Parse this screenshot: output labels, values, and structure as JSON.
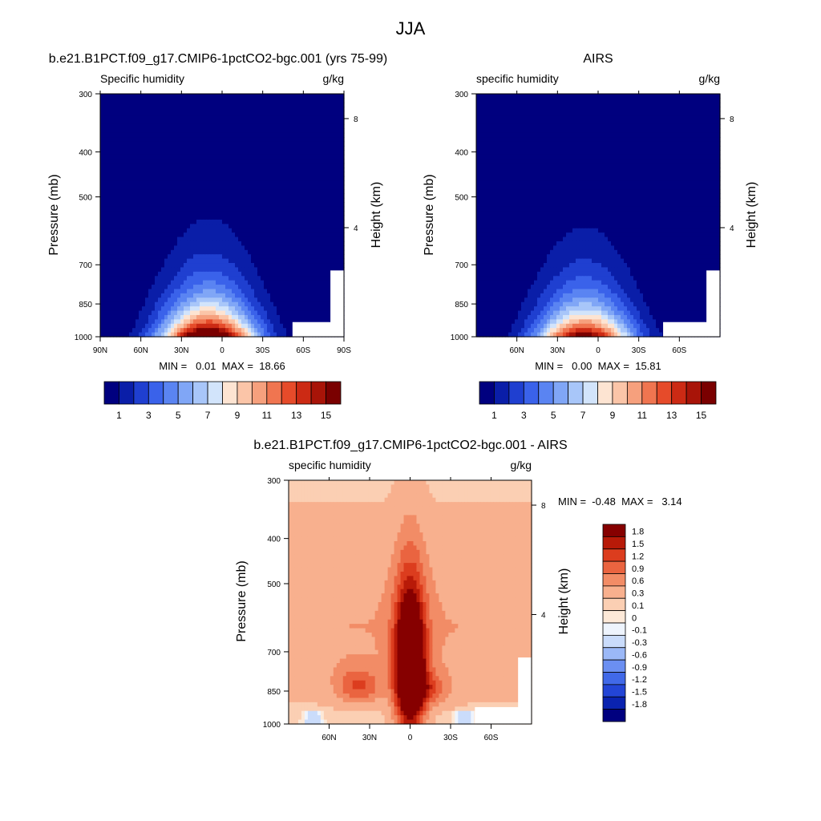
{
  "figure_title": "JJA",
  "colors": {
    "seq": [
      "#00007f",
      "#0a1ea8",
      "#1f3fd0",
      "#3a62ea",
      "#5a84f2",
      "#80a6f6",
      "#a8c6f9",
      "#d2e4fb",
      "#fde4d2",
      "#fbc5a8",
      "#f6a07d",
      "#f07550",
      "#e64b2a",
      "#cc2a14",
      "#a81408",
      "#7a0000"
    ],
    "div": [
      "#00007f",
      "#0a23b0",
      "#2345d6",
      "#4169e8",
      "#6b8ff2",
      "#9bb8f7",
      "#cadcfb",
      "#eef4fd",
      "#fde9d8",
      "#fbcfb3",
      "#f8b08e",
      "#f28c66",
      "#ea6440",
      "#dc3d1e",
      "#b81a08",
      "#860000"
    ]
  },
  "chart_data": [
    {
      "type": "heatmap",
      "title": "b.e21.B1PCT.f09_g17.CMIP6-1pctCO2-bgc.001 (yrs 75-99)",
      "left_label": "Specific humidity",
      "right_label": "g/kg",
      "ylabel": "Pressure (mb)",
      "ylabel_right": "Height (km)",
      "y_ticks": [
        "300",
        "400",
        "500",
        "700",
        "850",
        "1000"
      ],
      "y_tick_values": [
        300,
        400,
        500,
        700,
        850,
        1000
      ],
      "height_ticks": [
        "8",
        "4"
      ],
      "height_tick_values": [
        8,
        4
      ],
      "x_ticks": [
        "90N",
        "60N",
        "30N",
        "0",
        "30S",
        "60S",
        "90S"
      ],
      "x_tick_values": [
        90,
        60,
        30,
        0,
        -30,
        -60,
        -90
      ],
      "xlim": [
        90,
        -90
      ],
      "ylim": [
        300,
        1000
      ],
      "y_scale": "log",
      "min_max": "MIN =   0.01  MAX =  18.66",
      "min": 0.01,
      "max": 18.66,
      "peak_lat": 10,
      "colorbar_labels": [
        "1",
        "3",
        "5",
        "7",
        "9",
        "11",
        "13",
        "15"
      ],
      "colorbar_levels": [
        1,
        2,
        3,
        4,
        5,
        6,
        7,
        8,
        9,
        10,
        11,
        12,
        13,
        14,
        15
      ]
    },
    {
      "type": "heatmap",
      "title": "AIRS",
      "left_label": "specific humidity",
      "right_label": "g/kg",
      "ylabel": "Pressure (mb)",
      "ylabel_right": "Height (km)",
      "y_ticks": [
        "300",
        "400",
        "500",
        "700",
        "850",
        "1000"
      ],
      "y_tick_values": [
        300,
        400,
        500,
        700,
        850,
        1000
      ],
      "height_ticks": [
        "8",
        "4"
      ],
      "height_tick_values": [
        8,
        4
      ],
      "x_ticks": [
        "60N",
        "30N",
        "0",
        "30S",
        "60S"
      ],
      "x_tick_values": [
        60,
        30,
        0,
        -30,
        -60
      ],
      "xlim": [
        90,
        -90
      ],
      "ylim": [
        300,
        1000
      ],
      "y_scale": "log",
      "min_max": "MIN =   0.00  MAX =  15.81",
      "min": 0.0,
      "max": 15.81,
      "peak_lat": 10,
      "colorbar_labels": [
        "1",
        "3",
        "5",
        "7",
        "9",
        "11",
        "13",
        "15"
      ],
      "colorbar_levels": [
        1,
        2,
        3,
        4,
        5,
        6,
        7,
        8,
        9,
        10,
        11,
        12,
        13,
        14,
        15
      ]
    },
    {
      "type": "heatmap",
      "title": "b.e21.B1PCT.f09_g17.CMIP6-1pctCO2-bgc.001 - AIRS",
      "left_label": "specific humidity",
      "right_label": "g/kg",
      "ylabel": "Pressure (mb)",
      "ylabel_right": "Height (km)",
      "y_ticks": [
        "300",
        "400",
        "500",
        "700",
        "850",
        "1000"
      ],
      "y_tick_values": [
        300,
        400,
        500,
        700,
        850,
        1000
      ],
      "height_ticks": [
        "8",
        "4"
      ],
      "height_tick_values": [
        8,
        4
      ],
      "x_ticks": [
        "60N",
        "30N",
        "0",
        "30S",
        "60S"
      ],
      "x_tick_values": [
        60,
        30,
        0,
        -30,
        -60
      ],
      "xlim": [
        90,
        -90
      ],
      "ylim": [
        300,
        1000
      ],
      "y_scale": "log",
      "min_max": "MIN =  -0.48  MAX =   3.14",
      "min": -0.48,
      "max": 3.14,
      "colorbar_labels": [
        "1.8",
        "1.5",
        "1.2",
        "0.9",
        "0.6",
        "0.3",
        "0.1",
        "0",
        "-0.1",
        "-0.3",
        "-0.6",
        "-0.9",
        "-1.2",
        "-1.5",
        "-1.8"
      ],
      "colorbar_levels": [
        -1.8,
        -1.5,
        -1.2,
        -0.9,
        -0.6,
        -0.3,
        -0.1,
        0,
        0.1,
        0.3,
        0.6,
        0.9,
        1.2,
        1.5,
        1.8
      ]
    }
  ]
}
